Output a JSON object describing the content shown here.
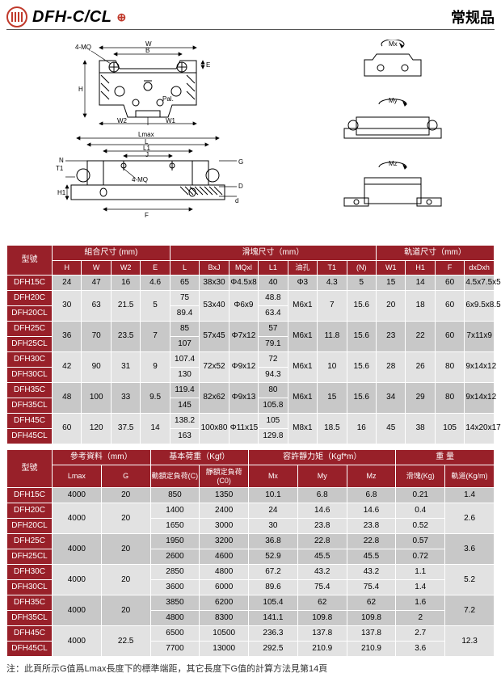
{
  "header": {
    "series": "DFH-C/CL",
    "right": "常规品"
  },
  "drawing_labels": {
    "mq4_top": "4-MQ",
    "W": "W",
    "B": "B",
    "H": "H",
    "W2": "W2",
    "W1": "W1",
    "Lmax": "Lmax",
    "L": "L",
    "L1": "L1",
    "J": "J",
    "N": "N",
    "T1": "T1",
    "mq4_side": "4-MQ",
    "H1": "H1",
    "G": "G",
    "D": "D",
    "d": "d",
    "F": "F",
    "E": "E",
    "pal": "Pal.",
    "Mx": "Mx",
    "My": "My",
    "Mz": "Mz"
  },
  "t1": {
    "model_h": "型號",
    "g1": "組合尺寸 (mm)",
    "g2": "滑塊尺寸（mm）",
    "g3": "軌道尺寸（mm）",
    "c": [
      "H",
      "W",
      "W2",
      "E",
      "L",
      "BxJ",
      "MQxl",
      "L1",
      "油孔",
      "T1",
      "(N)",
      "W1",
      "H1",
      "F",
      "dxDxh"
    ],
    "rows": [
      [
        "DFH15C",
        "24",
        "47",
        "16",
        "4.6",
        "65",
        "38x30",
        "Φ4.5x8",
        "40",
        "Φ3",
        "4.3",
        "5",
        "15",
        "14",
        "60",
        "4.5x7.5x5.3"
      ],
      [
        "DFH20C",
        "30",
        "63",
        "21.5",
        "5",
        "75",
        "53x40",
        "Φ6x9",
        "48.8",
        "M6x1",
        "7",
        "15.6",
        "20",
        "18",
        "60",
        "6x9.5x8.5"
      ],
      [
        "DFH20CL",
        "30",
        "63",
        "21.5",
        "5",
        "89.4",
        "53x40",
        "Φ6x9",
        "63.4",
        "M6x1",
        "7",
        "15.6",
        "20",
        "18",
        "60",
        "6x9.5x8.5"
      ],
      [
        "DFH25C",
        "36",
        "70",
        "23.5",
        "7",
        "85",
        "57x45",
        "Φ7x12",
        "57",
        "M6x1",
        "11.8",
        "15.6",
        "23",
        "22",
        "60",
        "7x11x9"
      ],
      [
        "DFH25CL",
        "36",
        "70",
        "23.5",
        "7",
        "107",
        "57x45",
        "Φ7x12",
        "79.1",
        "M6x1",
        "11.8",
        "15.6",
        "23",
        "22",
        "60",
        "7x11x9"
      ],
      [
        "DFH30C",
        "42",
        "90",
        "31",
        "9",
        "107.4",
        "72x52",
        "Φ9x12",
        "72",
        "M6x1",
        "10",
        "15.6",
        "28",
        "26",
        "80",
        "9x14x12"
      ],
      [
        "DFH30CL",
        "42",
        "90",
        "31",
        "9",
        "130",
        "72x52",
        "Φ9x12",
        "94.3",
        "M6x1",
        "10",
        "15.6",
        "28",
        "26",
        "80",
        "9x14x12"
      ],
      [
        "DFH35C",
        "48",
        "100",
        "33",
        "9.5",
        "119.4",
        "82x62",
        "Φ9x13",
        "80",
        "M6x1",
        "15",
        "15.6",
        "34",
        "29",
        "80",
        "9x14x12"
      ],
      [
        "DFH35CL",
        "48",
        "100",
        "33",
        "9.5",
        "145",
        "82x62",
        "Φ9x13",
        "105.8",
        "M6x1",
        "15",
        "15.6",
        "34",
        "29",
        "80",
        "9x14x12"
      ],
      [
        "DFH45C",
        "60",
        "120",
        "37.5",
        "14",
        "138.2",
        "100x80",
        "Φ11x15",
        "105",
        "M8x1",
        "18.5",
        "16",
        "45",
        "38",
        "105",
        "14x20x17"
      ],
      [
        "DFH45CL",
        "60",
        "120",
        "37.5",
        "14",
        "163",
        "100x80",
        "Φ11x15",
        "129.8",
        "M8x1",
        "18.5",
        "16",
        "45",
        "38",
        "105",
        "14x20x17"
      ]
    ],
    "spans": [
      [
        1,
        1,
        1,
        1,
        1,
        1,
        1,
        1,
        1,
        1,
        1,
        1,
        1,
        1,
        1,
        1
      ],
      [
        1,
        2,
        2,
        2,
        2,
        1,
        2,
        2,
        1,
        2,
        2,
        2,
        2,
        2,
        2,
        2
      ],
      [
        1,
        0,
        0,
        0,
        0,
        1,
        0,
        0,
        1,
        0,
        0,
        0,
        0,
        0,
        0,
        0
      ],
      [
        1,
        2,
        2,
        2,
        2,
        1,
        2,
        2,
        1,
        2,
        2,
        2,
        2,
        2,
        2,
        2
      ],
      [
        1,
        0,
        0,
        0,
        0,
        1,
        0,
        0,
        1,
        0,
        0,
        0,
        0,
        0,
        0,
        0
      ],
      [
        1,
        2,
        2,
        2,
        2,
        1,
        2,
        2,
        1,
        2,
        2,
        2,
        2,
        2,
        2,
        2
      ],
      [
        1,
        0,
        0,
        0,
        0,
        1,
        0,
        0,
        1,
        0,
        0,
        0,
        0,
        0,
        0,
        0
      ],
      [
        1,
        2,
        2,
        2,
        2,
        1,
        2,
        2,
        1,
        2,
        2,
        2,
        2,
        2,
        2,
        2
      ],
      [
        1,
        0,
        0,
        0,
        0,
        1,
        0,
        0,
        1,
        0,
        0,
        0,
        0,
        0,
        0,
        0
      ],
      [
        1,
        2,
        2,
        2,
        2,
        1,
        2,
        2,
        1,
        2,
        2,
        2,
        2,
        2,
        2,
        2
      ],
      [
        1,
        0,
        0,
        0,
        0,
        1,
        0,
        0,
        1,
        0,
        0,
        0,
        0,
        0,
        0,
        0
      ]
    ],
    "shade_groups": [
      "a",
      "b",
      "b",
      "a",
      "a",
      "b",
      "b",
      "a",
      "a",
      "b",
      "b"
    ]
  },
  "t2": {
    "model_h": "型號",
    "g1": "參考資料（mm）",
    "g2": "基本荷重（Kgf）",
    "g3": "容許靜力矩（Kgf*m）",
    "g4": "重 量",
    "c": [
      "Lmax",
      "G",
      "動額定負荷(C)",
      "靜額定負荷(C0)",
      "Mx",
      "My",
      "Mz",
      "滑塊(Kg)",
      "軌道(Kg/m)"
    ],
    "rows": [
      [
        "DFH15C",
        "4000",
        "20",
        "850",
        "1350",
        "10.1",
        "6.8",
        "6.8",
        "0.21",
        "1.4"
      ],
      [
        "DFH20C",
        "4000",
        "20",
        "1400",
        "2400",
        "24",
        "14.6",
        "14.6",
        "0.4",
        "2.6"
      ],
      [
        "DFH20CL",
        "4000",
        "20",
        "1650",
        "3000",
        "30",
        "23.8",
        "23.8",
        "0.52",
        "2.6"
      ],
      [
        "DFH25C",
        "4000",
        "20",
        "1950",
        "3200",
        "36.8",
        "22.8",
        "22.8",
        "0.57",
        "3.6"
      ],
      [
        "DFH25CL",
        "4000",
        "20",
        "2600",
        "4600",
        "52.9",
        "45.5",
        "45.5",
        "0.72",
        "3.6"
      ],
      [
        "DFH30C",
        "4000",
        "20",
        "2850",
        "4800",
        "67.2",
        "43.2",
        "43.2",
        "1.1",
        "5.2"
      ],
      [
        "DFH30CL",
        "4000",
        "20",
        "3600",
        "6000",
        "89.6",
        "75.4",
        "75.4",
        "1.4",
        "5.2"
      ],
      [
        "DFH35C",
        "4000",
        "20",
        "3850",
        "6200",
        "105.4",
        "62",
        "62",
        "1.6",
        "7.2"
      ],
      [
        "DFH35CL",
        "4000",
        "20",
        "4800",
        "8300",
        "141.1",
        "109.8",
        "109.8",
        "2",
        "7.2"
      ],
      [
        "DFH45C",
        "4000",
        "22.5",
        "6500",
        "10500",
        "236.3",
        "137.8",
        "137.8",
        "2.7",
        "12.3"
      ],
      [
        "DFH45CL",
        "4000",
        "22.5",
        "7700",
        "13000",
        "292.5",
        "210.9",
        "210.9",
        "3.6",
        "12.3"
      ]
    ],
    "spans": [
      [
        1,
        1,
        1,
        1,
        1,
        1,
        1,
        1,
        1,
        1
      ],
      [
        1,
        2,
        2,
        1,
        1,
        1,
        1,
        1,
        1,
        2
      ],
      [
        1,
        0,
        0,
        1,
        1,
        1,
        1,
        1,
        1,
        0
      ],
      [
        1,
        2,
        2,
        1,
        1,
        1,
        1,
        1,
        1,
        2
      ],
      [
        1,
        0,
        0,
        1,
        1,
        1,
        1,
        1,
        1,
        0
      ],
      [
        1,
        2,
        2,
        1,
        1,
        1,
        1,
        1,
        1,
        2
      ],
      [
        1,
        0,
        0,
        1,
        1,
        1,
        1,
        1,
        1,
        0
      ],
      [
        1,
        2,
        2,
        1,
        1,
        1,
        1,
        1,
        1,
        2
      ],
      [
        1,
        0,
        0,
        1,
        1,
        1,
        1,
        1,
        1,
        0
      ],
      [
        1,
        2,
        2,
        1,
        1,
        1,
        1,
        1,
        1,
        2
      ],
      [
        1,
        0,
        0,
        1,
        1,
        1,
        1,
        1,
        1,
        0
      ]
    ],
    "shade_groups": [
      "a",
      "b",
      "b",
      "a",
      "a",
      "b",
      "b",
      "a",
      "a",
      "b",
      "b"
    ]
  },
  "note": "注：此頁所示G值爲Lmax長度下的標準端距，其它長度下G值的計算方法見第14頁"
}
